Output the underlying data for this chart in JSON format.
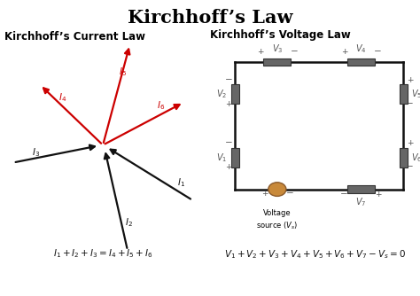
{
  "title": "Kirchhoff’s Law",
  "title_fontsize": 15,
  "bg_color": "#ffffff",
  "kcl_label": "Kirchhoff’s Current Law",
  "kvl_label": "Kirchhoff’s Voltage Law",
  "arrow_color_black": "#111111",
  "arrow_color_red": "#cc0000",
  "resistor_color": "#666666",
  "source_color": "#c8893a",
  "wire_color": "#111111",
  "label_color": "#555555",
  "eq_color": "#111111",
  "subtitle_fontsize": 8.5,
  "label_fontsize": 7.0,
  "eq_fontsize": 7.5
}
